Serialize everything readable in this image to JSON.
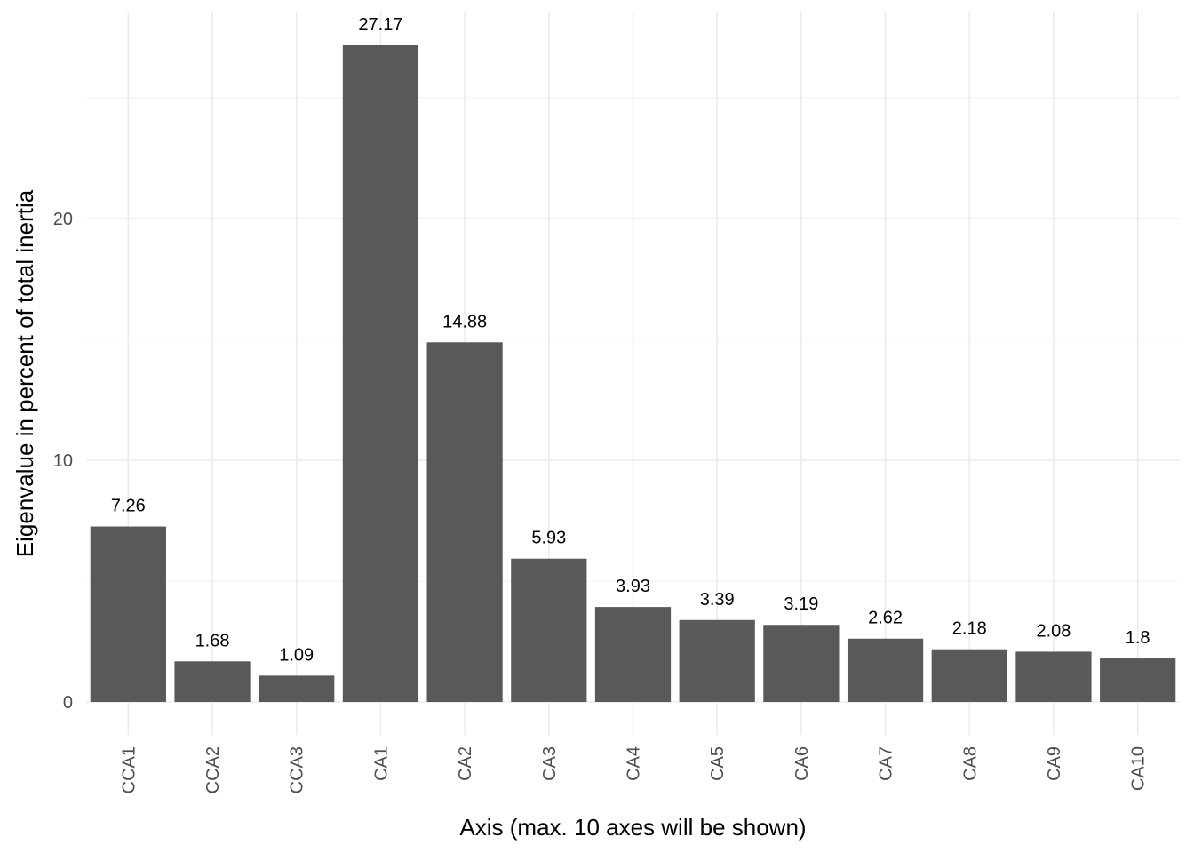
{
  "chart_data": {
    "type": "bar",
    "title": "",
    "xlabel": "Axis (max. 10 axes will be shown)",
    "ylabel": "Eigenvalue in percent of total inertia",
    "categories": [
      "CCA1",
      "CCA2",
      "CCA3",
      "CA1",
      "CA2",
      "CA3",
      "CA4",
      "CA5",
      "CA6",
      "CA7",
      "CA8",
      "CA9",
      "CA10"
    ],
    "values": [
      7.26,
      1.68,
      1.09,
      27.17,
      14.88,
      5.93,
      3.93,
      3.39,
      3.19,
      2.62,
      2.18,
      2.08,
      1.8
    ],
    "data_labels": [
      "7.26",
      "1.68",
      "1.09",
      "27.17",
      "14.88",
      "5.93",
      "3.93",
      "3.39",
      "3.19",
      "2.62",
      "2.18",
      "2.08",
      "1.8"
    ],
    "yticks": [
      0,
      10,
      20
    ],
    "ytick_labels": [
      "0",
      "10",
      "20"
    ],
    "ylim": [
      -1.36,
      28.53
    ],
    "grid": true,
    "legend": "none",
    "bar_color": "#595959",
    "grid_color": "#ebebeb",
    "background": "#ffffff"
  }
}
